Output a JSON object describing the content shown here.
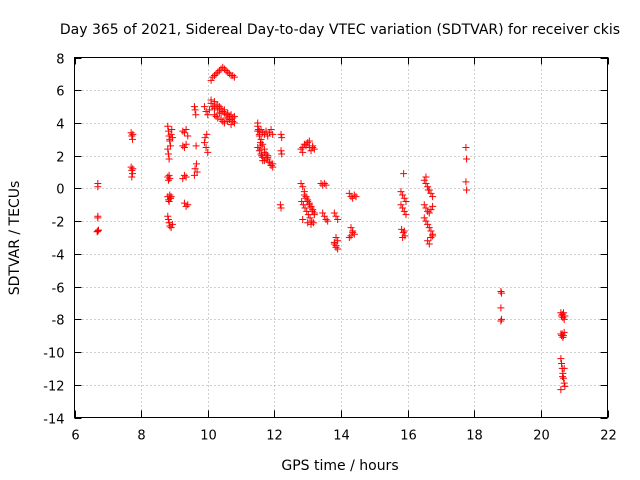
{
  "chart_data": {
    "type": "scatter",
    "title": "Day 365 of 2021, Sidereal Day-to-day VTEC variation (SDTVAR) for receiver ckis",
    "xlabel": "GPS time / hours",
    "ylabel": "SDTVAR / TECUs",
    "xlim": [
      6,
      22
    ],
    "ylim": [
      -14,
      8
    ],
    "xticks": [
      6,
      8,
      10,
      12,
      14,
      16,
      18,
      20,
      22
    ],
    "yticks": [
      -14,
      -12,
      -10,
      -8,
      -6,
      -4,
      -2,
      0,
      2,
      4,
      6,
      8
    ],
    "grid": true,
    "marker": "+",
    "series_color": "#ff0000",
    "series": [
      {
        "name": "SDTVAR",
        "x": [
          6.7,
          6.7,
          6.7,
          6.7,
          6.72,
          6.68,
          6.7,
          7.7,
          7.72,
          7.74,
          7.75,
          7.7,
          7.72,
          7.74,
          7.72,
          7.75,
          8.8,
          8.82,
          8.84,
          8.86,
          8.88,
          8.8,
          8.82,
          8.84,
          8.86,
          8.9,
          8.92,
          8.94,
          8.8,
          8.82,
          8.84,
          8.86,
          8.88,
          8.8,
          8.82,
          8.84,
          8.86,
          8.88,
          8.9,
          8.8,
          8.82,
          8.84,
          8.86,
          8.9,
          8.94,
          9.25,
          9.3,
          9.35,
          9.4,
          9.25,
          9.3,
          9.35,
          9.25,
          9.3,
          9.35,
          9.3,
          9.35,
          9.4,
          9.6,
          9.62,
          9.64,
          9.66,
          9.68,
          9.6,
          9.62,
          9.65,
          9.9,
          9.95,
          10.0,
          10.05,
          9.9,
          9.95,
          10.0,
          9.92,
          9.97,
          10.1,
          10.15,
          10.2,
          10.25,
          10.3,
          10.35,
          10.4,
          10.45,
          10.5,
          10.55,
          10.6,
          10.65,
          10.7,
          10.75,
          10.8,
          10.1,
          10.15,
          10.2,
          10.25,
          10.3,
          10.35,
          10.4,
          10.45,
          10.5,
          10.55,
          10.6,
          10.65,
          10.7,
          10.75,
          10.8,
          10.1,
          10.2,
          10.3,
          10.4,
          10.5,
          10.6,
          10.7,
          10.2,
          10.25,
          10.3,
          10.35,
          10.4,
          10.45,
          10.5,
          10.55,
          10.6,
          10.65,
          10.7,
          10.75,
          10.8,
          11.5,
          11.52,
          11.55,
          11.58,
          11.6,
          11.62,
          11.65,
          11.5,
          11.55,
          11.6,
          11.65,
          11.7,
          11.75,
          11.8,
          11.85,
          11.9,
          11.95,
          11.5,
          11.55,
          11.6,
          11.65,
          11.7,
          11.75,
          11.8,
          11.85,
          11.9,
          11.95,
          11.6,
          11.7,
          11.8,
          11.9,
          11.5,
          11.55,
          11.6,
          11.65,
          11.7,
          11.75,
          11.8,
          11.85,
          11.9,
          11.95,
          12.2,
          12.22,
          12.2,
          12.22,
          12.18,
          12.2,
          12.8,
          12.85,
          12.9,
          12.95,
          13.0,
          13.05,
          13.1,
          13.15,
          13.2,
          12.85,
          12.95,
          13.05,
          13.15,
          12.8,
          12.85,
          12.9,
          12.95,
          13.0,
          13.05,
          13.1,
          13.15,
          13.2,
          12.82,
          12.87,
          12.92,
          12.97,
          13.02,
          13.07,
          13.12,
          13.17,
          12.9,
          12.95,
          13.0,
          13.05,
          13.1,
          13.15,
          13.2,
          12.85,
          13.0,
          13.1,
          13.4,
          13.45,
          13.5,
          13.55,
          13.45,
          13.5,
          13.55,
          13.6,
          13.8,
          13.85,
          13.9,
          13.85,
          13.9,
          13.8,
          13.85,
          13.9,
          13.8,
          13.85,
          14.25,
          14.3,
          14.35,
          14.4,
          14.45,
          14.3,
          14.35,
          14.4,
          14.25,
          14.3,
          14.35,
          15.8,
          15.85,
          15.9,
          15.95,
          15.8,
          15.85,
          15.9,
          15.95,
          15.82,
          15.87,
          15.92,
          15.85,
          15.9,
          15.88,
          16.5,
          16.55,
          16.6,
          16.65,
          16.7,
          16.75,
          16.5,
          16.55,
          16.6,
          16.65,
          16.7,
          16.75,
          16.5,
          16.55,
          16.6,
          16.65,
          16.7,
          16.75,
          16.6,
          16.65,
          16.7,
          16.75,
          16.55,
          16.62,
          17.75,
          17.77,
          17.75,
          17.77,
          18.8,
          18.82,
          18.8,
          18.82,
          18.8,
          20.6,
          20.62,
          20.64,
          20.66,
          20.68,
          20.7,
          20.72,
          20.6,
          20.62,
          20.64,
          20.66,
          20.68,
          20.7,
          20.6,
          20.62,
          20.64,
          20.66,
          20.68,
          20.7,
          20.72,
          20.6,
          20.65,
          20.7
        ],
        "y": [
          0.3,
          0.1,
          -1.7,
          -2.6,
          -2.55,
          -2.65,
          -1.8,
          3.4,
          3.2,
          3.0,
          3.3,
          1.3,
          1.1,
          0.9,
          0.7,
          1.2,
          3.8,
          3.5,
          3.2,
          2.9,
          2.6,
          2.4,
          2.1,
          1.8,
          3.0,
          3.3,
          3.6,
          3.1,
          0.7,
          0.5,
          0.8,
          0.6,
          -0.6,
          -0.5,
          -0.7,
          -0.8,
          -0.4,
          -0.6,
          -0.5,
          -1.7,
          -1.9,
          -2.1,
          -2.3,
          -2.4,
          -2.2,
          3.5,
          3.4,
          3.6,
          3.2,
          2.6,
          2.5,
          2.7,
          0.6,
          0.8,
          0.7,
          -0.9,
          -1.1,
          -1.0,
          5.0,
          4.8,
          4.5,
          1.5,
          1.0,
          0.8,
          1.2,
          2.6,
          5.0,
          4.7,
          4.5,
          4.8,
          2.8,
          2.5,
          2.2,
          3.1,
          3.3,
          6.6,
          6.8,
          6.9,
          7.0,
          7.1,
          7.2,
          7.3,
          7.4,
          7.3,
          7.2,
          7.1,
          7.0,
          6.9,
          6.9,
          6.8,
          5.2,
          5.0,
          4.9,
          5.1,
          4.8,
          5.0,
          4.9,
          4.7,
          4.6,
          4.5,
          4.6,
          4.4,
          4.5,
          4.3,
          4.4,
          5.4,
          5.3,
          5.1,
          4.6,
          4.8,
          4.5,
          4.2,
          4.5,
          4.4,
          4.3,
          4.6,
          4.2,
          4.1,
          4.0,
          4.3,
          4.1,
          4.2,
          3.9,
          4.1,
          4.0,
          4.0,
          3.6,
          3.2,
          2.8,
          2.4,
          2.0,
          1.7,
          3.5,
          3.3,
          3.0,
          2.7,
          2.4,
          2.1,
          1.8,
          1.6,
          1.4,
          1.3,
          3.8,
          3.5,
          3.6,
          3.4,
          3.3,
          3.5,
          3.2,
          3.4,
          3.6,
          3.3,
          2.6,
          2.2,
          1.9,
          1.5,
          2.5,
          2.3,
          2.1,
          1.9,
          1.7,
          1.8,
          2.0,
          1.6,
          1.4,
          1.5,
          3.3,
          3.1,
          2.3,
          2.1,
          -1.0,
          -1.2,
          2.4,
          2.5,
          2.7,
          2.6,
          2.8,
          2.5,
          2.3,
          2.6,
          2.4,
          2.2,
          2.7,
          2.9,
          2.5,
          0.3,
          0.1,
          -0.2,
          -0.5,
          -0.7,
          -0.9,
          -1.1,
          -1.3,
          -1.5,
          -0.8,
          -1.0,
          -1.2,
          -1.4,
          -1.6,
          -1.8,
          -2.0,
          -2.1,
          -0.4,
          -0.6,
          -0.8,
          -1.0,
          -1.2,
          -1.4,
          -1.6,
          -1.9,
          -2.1,
          -2.2,
          0.3,
          0.2,
          0.3,
          0.2,
          -1.5,
          -1.7,
          -1.9,
          -2.0,
          -1.5,
          -1.7,
          -1.9,
          -3.0,
          -3.2,
          -3.4,
          -3.6,
          -3.7,
          -3.3,
          -3.5,
          -0.3,
          -0.5,
          -0.6,
          -0.4,
          -0.5,
          -2.4,
          -2.6,
          -2.8,
          -3.0,
          -2.9,
          -2.7,
          -0.2,
          -0.4,
          -0.6,
          -0.8,
          -1.0,
          -1.2,
          -1.4,
          -1.6,
          -2.5,
          -2.7,
          -2.9,
          -3.0,
          -2.6,
          0.9,
          0.5,
          0.3,
          0.1,
          -0.1,
          -0.3,
          -0.5,
          -1.0,
          -1.2,
          -1.4,
          -1.5,
          -1.3,
          -1.1,
          -1.8,
          -2.0,
          -2.2,
          -2.4,
          -2.6,
          -2.8,
          -3.2,
          -3.4,
          -3.0,
          -2.9,
          0.7,
          -0.1,
          2.5,
          1.8,
          0.4,
          -0.1,
          -6.3,
          -6.4,
          -7.3,
          -8.0,
          -8.1,
          -7.6,
          -7.8,
          -7.7,
          -7.9,
          -7.6,
          -8.0,
          -7.8,
          -8.9,
          -9.0,
          -8.9,
          -9.1,
          -9.0,
          -8.8,
          -10.4,
          -10.7,
          -11.0,
          -11.3,
          -11.6,
          -11.9,
          -12.1,
          -12.3,
          -11.5,
          -11.0
        ]
      }
    ]
  }
}
